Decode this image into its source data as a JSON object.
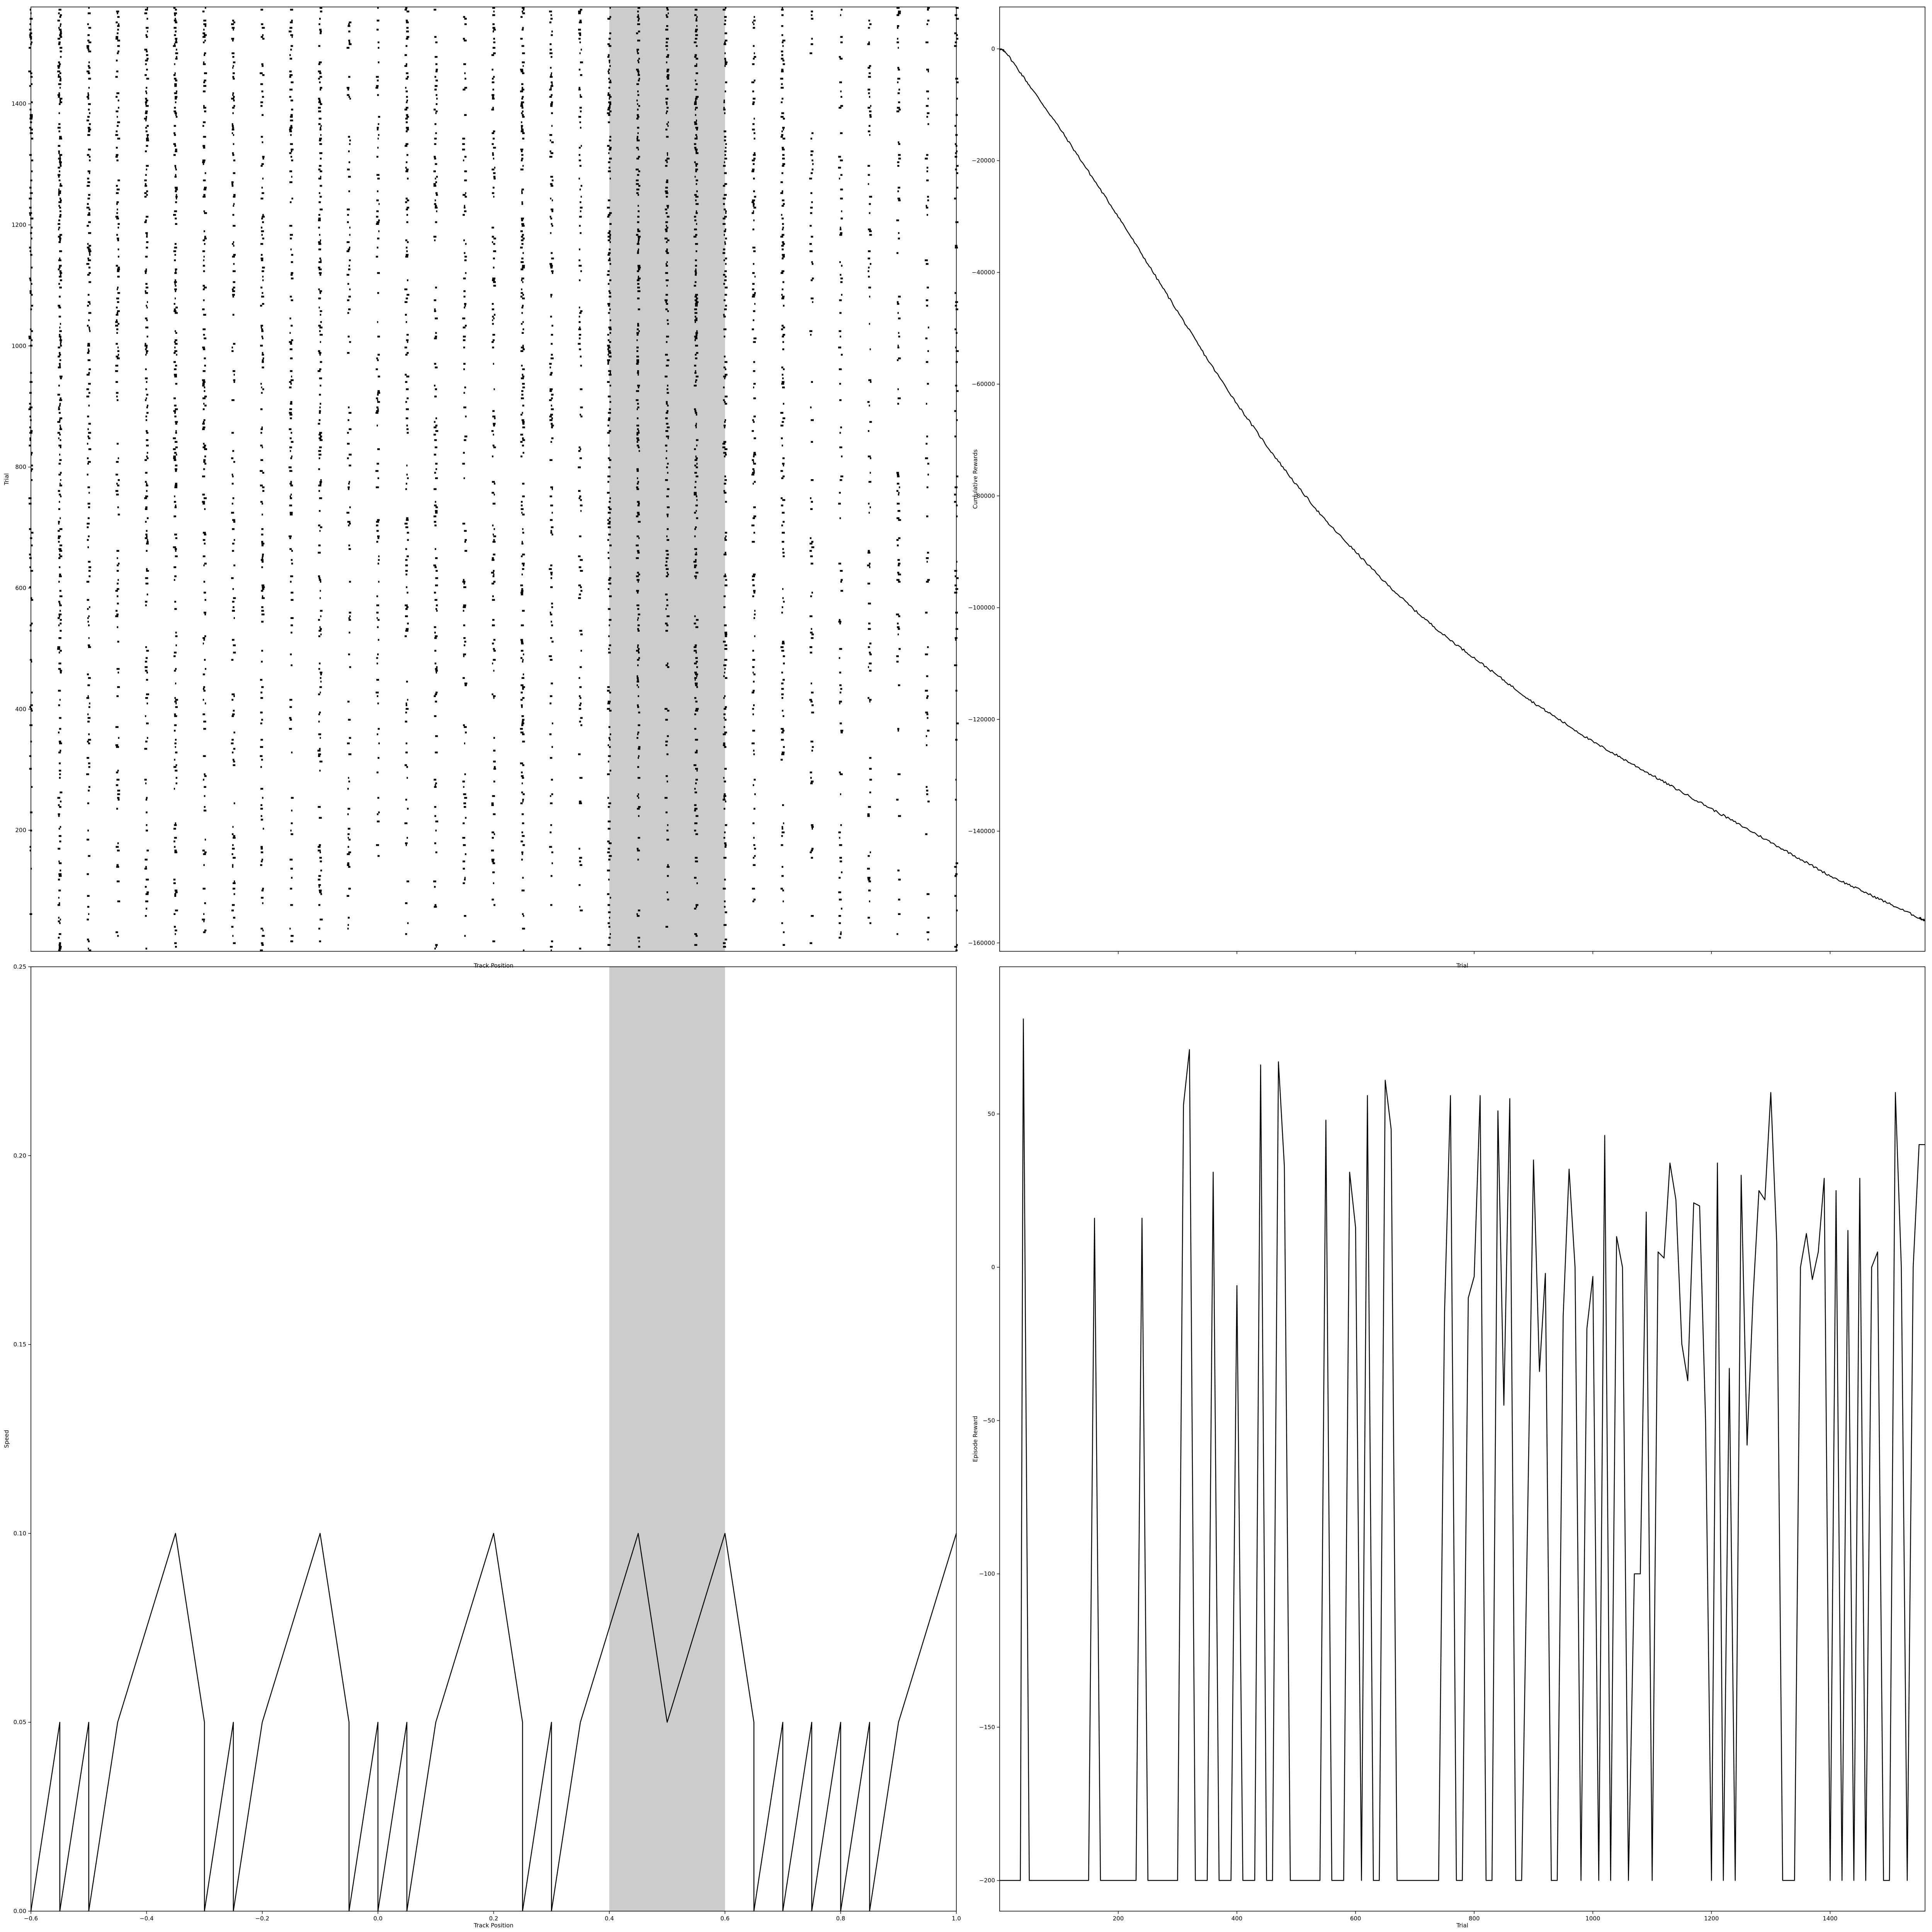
{
  "chart_data": [
    {
      "id": "spike-raster",
      "type": "scatter",
      "title": "",
      "xlabel": "Track Position",
      "ylabel": "Trial",
      "xlim": [
        -0.6,
        1.0
      ],
      "ylim": [
        0,
        1560
      ],
      "xticks_visible": false,
      "yticks": [
        200,
        400,
        600,
        800,
        1000,
        1200,
        1400
      ],
      "shaded_region": [
        0.4,
        0.6
      ],
      "shade_color": "#cccccc",
      "raster_x": [
        -0.6,
        -0.55,
        -0.5,
        -0.45,
        -0.4,
        -0.35,
        -0.3,
        -0.25,
        -0.2,
        -0.15,
        -0.1,
        -0.05,
        0.0,
        0.05,
        0.1,
        0.15,
        0.2,
        0.25,
        0.3,
        0.35,
        0.4,
        0.45,
        0.5,
        0.55,
        0.6,
        0.65,
        0.7,
        0.75,
        0.8,
        0.85,
        0.9,
        0.95,
        1.0
      ],
      "raster_density": [
        0.45,
        0.85,
        0.6,
        0.45,
        0.55,
        0.6,
        0.5,
        0.4,
        0.5,
        0.45,
        0.55,
        0.35,
        0.35,
        0.4,
        0.4,
        0.35,
        0.45,
        0.55,
        0.45,
        0.4,
        0.5,
        0.6,
        0.6,
        0.65,
        0.55,
        0.45,
        0.45,
        0.3,
        0.3,
        0.3,
        0.25,
        0.25,
        0.25
      ]
    },
    {
      "id": "cumulative-rewards",
      "type": "line",
      "title": "",
      "xlabel": "Trial",
      "ylabel": "Cumulative Rewards",
      "xlim": [
        0,
        1560
      ],
      "ylim": [
        -161500,
        7500
      ],
      "xticks_visible": false,
      "yticks": [
        0,
        -20000,
        -40000,
        -60000,
        -80000,
        -100000,
        -120000,
        -140000,
        -160000
      ],
      "series": [
        {
          "x": [
            0,
            10,
            50,
            100,
            150,
            200,
            250,
            300,
            350,
            400,
            450,
            500,
            550,
            600,
            650,
            700,
            750,
            800,
            850,
            900,
            950,
            1000,
            1050,
            1100,
            1150,
            1200,
            1250,
            1300,
            1350,
            1400,
            1450,
            1500,
            1550,
            1560
          ],
          "y": [
            0,
            -500,
            -6500,
            -14000,
            -22000,
            -30000,
            -38500,
            -47000,
            -55500,
            -63500,
            -71000,
            -78000,
            -84500,
            -90000,
            -95500,
            -100500,
            -105000,
            -109000,
            -113000,
            -117000,
            -120500,
            -124000,
            -127000,
            -130000,
            -133000,
            -136000,
            -139000,
            -142000,
            -145000,
            -148000,
            -150500,
            -153000,
            -155500,
            -156000
          ]
        }
      ]
    },
    {
      "id": "speed-profile",
      "type": "line",
      "title": "",
      "xlabel": "Track Position",
      "ylabel": "Speed",
      "xlim": [
        -0.6,
        1.0
      ],
      "ylim": [
        0.0,
        0.25
      ],
      "xticks": [
        -0.6,
        -0.4,
        -0.2,
        0.0,
        0.2,
        0.4,
        0.6,
        0.8,
        1.0
      ],
      "xticklabels": [
        "−0.6",
        "−0.4",
        "−0.2",
        "0.0",
        "0.2",
        "0.4",
        "0.6",
        "0.8",
        "1.0"
      ],
      "yticks": [
        0.0,
        0.05,
        0.1,
        0.15,
        0.2,
        0.25
      ],
      "yticklabels": [
        "0.00",
        "0.05",
        "0.10",
        "0.15",
        "0.20",
        "0.25"
      ],
      "shaded_region": [
        0.4,
        0.6
      ],
      "shade_color": "#cccccc",
      "series": [
        {
          "x": [
            -0.6,
            -0.55,
            -0.55,
            -0.5,
            -0.5,
            -0.45,
            -0.35,
            -0.3,
            -0.3,
            -0.25,
            -0.25,
            -0.2,
            -0.1,
            -0.05,
            -0.05,
            0.0,
            0.0,
            0.05,
            0.05,
            0.1,
            0.2,
            0.25,
            0.25,
            0.3,
            0.3,
            0.35,
            0.45,
            0.5,
            0.6,
            0.65,
            0.65,
            0.7,
            0.7,
            0.75,
            0.75,
            0.8,
            0.8,
            0.85,
            0.85,
            0.9,
            1.0
          ],
          "y": [
            0.0,
            0.05,
            0.0,
            0.05,
            0.0,
            0.05,
            0.1,
            0.05,
            0.0,
            0.05,
            0.0,
            0.05,
            0.1,
            0.05,
            0.0,
            0.05,
            0.0,
            0.05,
            0.0,
            0.05,
            0.1,
            0.05,
            0.0,
            0.05,
            0.0,
            0.05,
            0.1,
            0.05,
            0.1,
            0.05,
            0.0,
            0.05,
            0.0,
            0.05,
            0.0,
            0.05,
            0.0,
            0.05,
            0.0,
            0.05,
            0.1
          ]
        }
      ]
    },
    {
      "id": "episode-reward",
      "type": "line",
      "title": "",
      "xlabel": "Trial",
      "ylabel": "Episode Reward",
      "xlim": [
        0,
        1560
      ],
      "ylim": [
        -210,
        98
      ],
      "xticks": [
        200,
        400,
        600,
        800,
        1000,
        1200,
        1400
      ],
      "yticks": [
        50,
        0,
        -50,
        -100,
        -150,
        -200
      ],
      "yticklabels": [
        "50",
        "0",
        "−50",
        "−100",
        "−150",
        "−200"
      ],
      "series": [
        {
          "x": [
            0,
            35,
            40,
            50,
            150,
            160,
            170,
            230,
            240,
            250,
            300,
            310,
            320,
            330,
            350,
            360,
            370,
            390,
            400,
            410,
            430,
            440,
            450,
            460,
            470,
            480,
            490,
            540,
            550,
            560,
            580,
            590,
            600,
            610,
            620,
            630,
            640,
            650,
            660,
            670,
            740,
            750,
            760,
            770,
            780,
            790,
            800,
            810,
            820,
            830,
            840,
            850,
            860,
            870,
            880,
            900,
            910,
            920,
            930,
            940,
            950,
            960,
            970,
            980,
            990,
            1000,
            1010,
            1020,
            1030,
            1040,
            1050,
            1060,
            1070,
            1080,
            1090,
            1100,
            1110,
            1120,
            1130,
            1140,
            1150,
            1160,
            1170,
            1180,
            1190,
            1200,
            1210,
            1220,
            1230,
            1240,
            1250,
            1260,
            1270,
            1280,
            1290,
            1300,
            1310,
            1320,
            1340,
            1350,
            1360,
            1370,
            1380,
            1390,
            1400,
            1410,
            1420,
            1430,
            1440,
            1450,
            1460,
            1470,
            1480,
            1490,
            1500,
            1510,
            1520,
            1530,
            1540,
            1550,
            1560
          ],
          "y": [
            -200,
            -200,
            81,
            -200,
            -200,
            16,
            -200,
            -200,
            16,
            -200,
            -200,
            53,
            71,
            -200,
            -200,
            31,
            -200,
            -200,
            -6,
            -200,
            -200,
            66,
            -200,
            -200,
            67,
            33,
            -200,
            -200,
            48,
            -200,
            -200,
            31,
            13,
            -200,
            56,
            -200,
            -200,
            61,
            45,
            -200,
            -200,
            -15,
            56,
            -200,
            -200,
            -10,
            -3,
            56,
            -200,
            -200,
            51,
            -45,
            55,
            -200,
            -200,
            35,
            -34,
            -2,
            -200,
            -200,
            -16,
            32,
            0,
            -200,
            -20,
            -3,
            -200,
            43,
            -200,
            10,
            0,
            -200,
            -100,
            -100,
            18,
            -200,
            5,
            3,
            34,
            22,
            -25,
            -37,
            21,
            20,
            -50,
            -200,
            34,
            -200,
            -33,
            -200,
            30,
            -58,
            -10,
            25,
            22,
            57,
            8,
            -200,
            -200,
            0,
            11,
            -4,
            5,
            29,
            -200,
            25,
            -200,
            12,
            -200,
            29,
            -200,
            0,
            5,
            -200,
            -200,
            57,
            0,
            -200,
            0,
            40,
            40
          ]
        }
      ]
    }
  ]
}
